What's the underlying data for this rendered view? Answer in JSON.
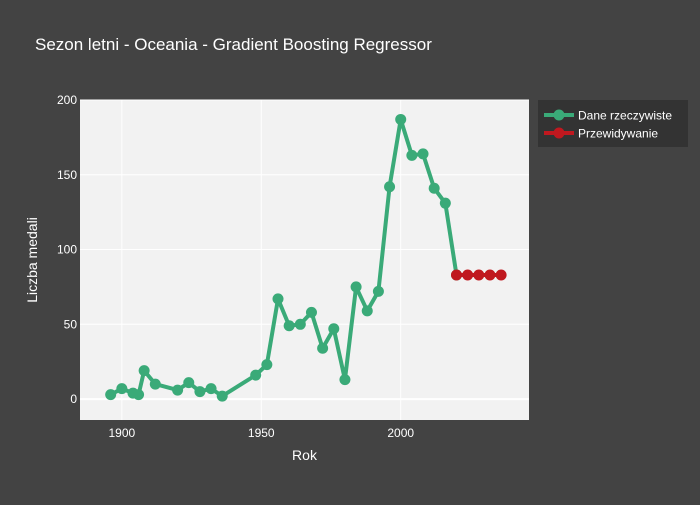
{
  "chart_data": {
    "type": "line",
    "title": "Sezon letni - Oceania - Gradient Boosting Regressor",
    "xlabel": "Rok",
    "ylabel": "Liczba medali",
    "xlim": [
      1885,
      2046
    ],
    "ylim": [
      -14,
      200
    ],
    "x_ticks": [
      1900,
      1950,
      2000
    ],
    "y_ticks": [
      0,
      50,
      100,
      150,
      200
    ],
    "grid": true,
    "legend_position": "top-right",
    "series": [
      {
        "name": "Dane rzeczywiste",
        "color": "#3aaa78",
        "x": [
          1896,
          1900,
          1904,
          1906,
          1908,
          1912,
          1920,
          1924,
          1928,
          1932,
          1936,
          1948,
          1952,
          1956,
          1960,
          1964,
          1968,
          1972,
          1976,
          1980,
          1984,
          1988,
          1992,
          1996,
          2000,
          2004,
          2008,
          2012,
          2016,
          2020
        ],
        "values": [
          3,
          7,
          4,
          3,
          19,
          10,
          6,
          11,
          5,
          7,
          2,
          16,
          23,
          67,
          49,
          50,
          58,
          34,
          47,
          13,
          75,
          59,
          72,
          142,
          187,
          163,
          164,
          141,
          131,
          83
        ]
      },
      {
        "name": "Przewidywanie",
        "color": "#c0181f",
        "x": [
          2020,
          2024,
          2028,
          2032,
          2036
        ],
        "values": [
          83,
          83,
          83,
          83,
          83
        ]
      }
    ]
  }
}
